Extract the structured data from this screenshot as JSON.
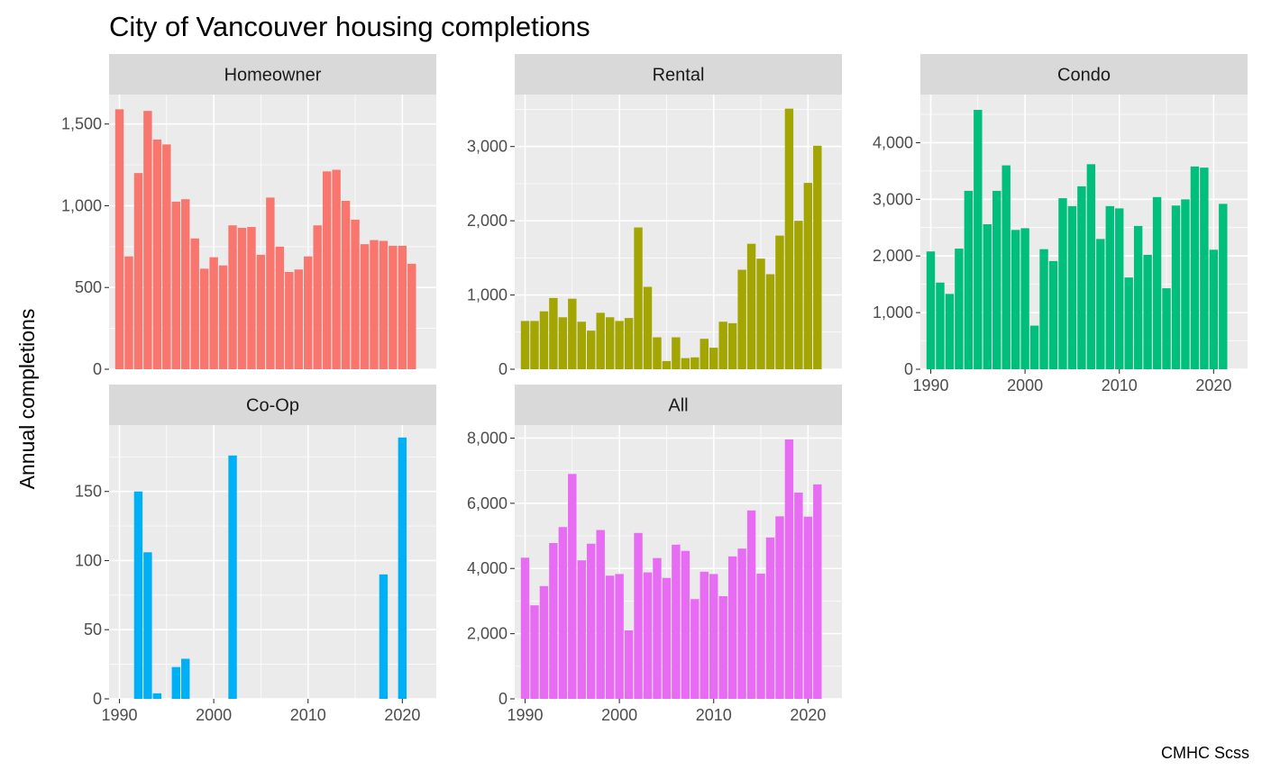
{
  "chart_data": {
    "type": "bar",
    "title": "City of Vancouver housing completions",
    "ylabel": "Annual completions",
    "xlabel": "",
    "caption": "CMHC Scss",
    "grid": true,
    "x_ticks": [
      1990,
      2000,
      2010,
      2020
    ],
    "years": [
      1990,
      1991,
      1992,
      1993,
      1994,
      1995,
      1996,
      1997,
      1998,
      1999,
      2000,
      2001,
      2002,
      2003,
      2004,
      2005,
      2006,
      2007,
      2008,
      2009,
      2010,
      2011,
      2012,
      2013,
      2014,
      2015,
      2016,
      2017,
      2018,
      2019,
      2020,
      2021
    ],
    "panels": [
      {
        "name": "Homeowner",
        "color": "#F8766D",
        "ylim": [
          0,
          1680
        ],
        "y_ticks": [
          0,
          500,
          1000,
          1500
        ],
        "y_tick_labels": [
          "0",
          "500",
          "1,000",
          "1,500"
        ],
        "values": [
          1590,
          690,
          1200,
          1580,
          1405,
          1375,
          1025,
          1040,
          800,
          615,
          685,
          635,
          880,
          865,
          870,
          700,
          1050,
          750,
          595,
          610,
          690,
          880,
          1210,
          1220,
          1030,
          915,
          765,
          790,
          785,
          755,
          755,
          645
        ]
      },
      {
        "name": "Rental",
        "color": "#A3A500",
        "ylim": [
          0,
          3700
        ],
        "y_ticks": [
          0,
          1000,
          2000,
          3000
        ],
        "y_tick_labels": [
          "0",
          "1,000",
          "2,000",
          "3,000"
        ],
        "values": [
          650,
          650,
          780,
          960,
          700,
          950,
          640,
          520,
          760,
          700,
          650,
          690,
          1910,
          1110,
          430,
          110,
          430,
          150,
          160,
          410,
          290,
          640,
          620,
          1340,
          1690,
          1490,
          1280,
          1800,
          3510,
          2000,
          2510,
          3010
        ]
      },
      {
        "name": "Condo",
        "color": "#00BF7D",
        "ylim": [
          0,
          4850
        ],
        "y_ticks": [
          0,
          1000,
          2000,
          3000,
          4000
        ],
        "y_tick_labels": [
          "0",
          "1,000",
          "2,000",
          "3,000",
          "4,000"
        ],
        "values": [
          2080,
          1530,
          1330,
          2130,
          3150,
          4580,
          2560,
          3150,
          3600,
          2460,
          2490,
          770,
          2120,
          1910,
          3020,
          2880,
          3230,
          3620,
          2300,
          2880,
          2840,
          1620,
          2530,
          2020,
          3040,
          1430,
          2890,
          3000,
          3580,
          3560,
          2110,
          2920
        ]
      },
      {
        "name": "Co-Op",
        "color": "#00B0F6",
        "ylim": [
          0,
          198
        ],
        "y_ticks": [
          0,
          50,
          100,
          150
        ],
        "y_tick_labels": [
          "0",
          "50",
          "100",
          "150"
        ],
        "values": [
          0,
          0,
          150,
          106,
          4,
          0,
          23,
          29,
          0,
          0,
          0,
          0,
          176,
          0,
          0,
          0,
          0,
          0,
          0,
          0,
          0,
          0,
          0,
          0,
          0,
          0,
          0,
          0,
          90,
          0,
          189,
          0
        ]
      },
      {
        "name": "All",
        "color": "#E76BF3",
        "ylim": [
          0,
          8400
        ],
        "y_ticks": [
          0,
          2000,
          4000,
          6000,
          8000
        ],
        "y_tick_labels": [
          "0",
          "2,000",
          "4,000",
          "6,000",
          "8,000"
        ],
        "values": [
          4330,
          2870,
          3460,
          4780,
          5270,
          6900,
          4250,
          4760,
          5180,
          3780,
          3830,
          2100,
          5090,
          3880,
          4320,
          3710,
          4730,
          4540,
          3060,
          3900,
          3830,
          3150,
          4370,
          4610,
          5780,
          3840,
          4950,
          5600,
          7960,
          6330,
          5590,
          6580
        ]
      }
    ]
  }
}
